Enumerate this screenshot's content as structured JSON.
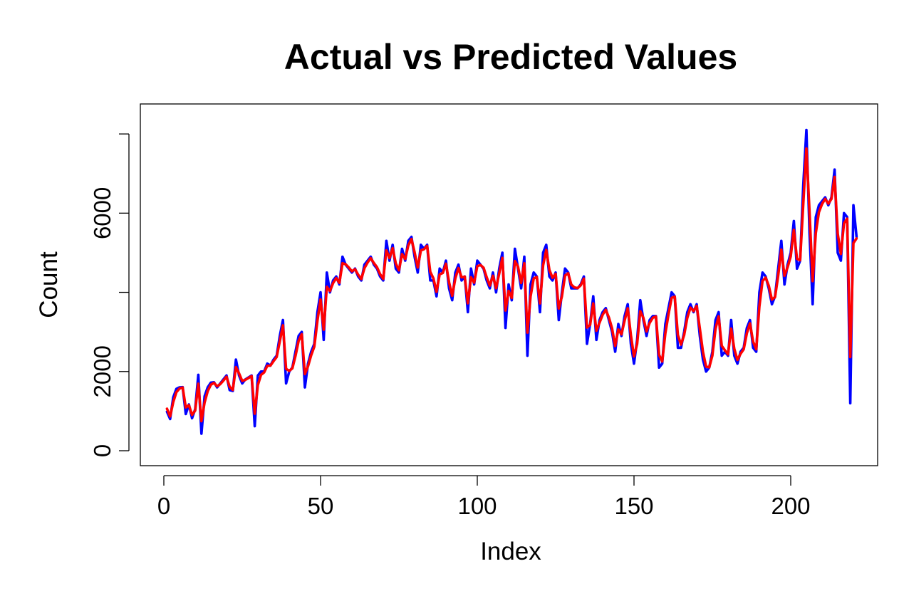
{
  "chart_data": {
    "type": "line",
    "title": "Actual vs Predicted Values",
    "xlabel": "Index",
    "ylabel": "Count",
    "xlim": [
      1,
      221
    ],
    "ylim": [
      0,
      8200
    ],
    "x_ticks": [
      0,
      50,
      100,
      150,
      200
    ],
    "y_ticks": [
      0,
      2000,
      6000
    ],
    "grid": false,
    "legend": "none",
    "series": [
      {
        "color": "#0000ff",
        "x_start": 1,
        "values": [
          985,
          801,
          1349,
          1562,
          1600,
          1606,
          927,
          1169,
          822,
          1051,
          1917,
          431,
          1376,
          1600,
          1720,
          1730,
          1600,
          1700,
          1800,
          1900,
          1530,
          1510,
          2300,
          1900,
          1700,
          1800,
          1850,
          1900,
          620,
          1900,
          2000,
          2000,
          2200,
          2150,
          2300,
          2400,
          2900,
          3300,
          1700,
          2000,
          2100,
          2500,
          2900,
          3000,
          1600,
          2200,
          2500,
          2700,
          3500,
          4000,
          2800,
          4500,
          4000,
          4300,
          4400,
          4200,
          4900,
          4700,
          4600,
          4500,
          4600,
          4400,
          4300,
          4700,
          4800,
          4900,
          4700,
          4600,
          4400,
          4300,
          5300,
          4800,
          5200,
          4600,
          4500,
          5100,
          4800,
          5300,
          5400,
          4900,
          4500,
          5200,
          5100,
          5200,
          4300,
          4300,
          3900,
          4600,
          4500,
          4800,
          4100,
          3800,
          4500,
          4700,
          4300,
          4400,
          3500,
          4600,
          4200,
          4800,
          4700,
          4600,
          4300,
          4100,
          4500,
          4000,
          4600,
          5000,
          3100,
          4200,
          3800,
          5100,
          4600,
          4100,
          4900,
          2400,
          4200,
          4500,
          4400,
          3500,
          5000,
          5200,
          4400,
          4300,
          4500,
          3300,
          4000,
          4600,
          4500,
          4100,
          4100,
          4100,
          4200,
          4400,
          2700,
          3200,
          3900,
          2800,
          3300,
          3500,
          3600,
          3300,
          3000,
          2500,
          3200,
          2900,
          3400,
          3700,
          2700,
          2200,
          2800,
          3800,
          3300,
          2900,
          3300,
          3400,
          3400,
          2100,
          2200,
          3200,
          3600,
          4000,
          3900,
          2600,
          2600,
          3000,
          3500,
          3700,
          3500,
          3700,
          2900,
          2300,
          2000,
          2100,
          2500,
          3300,
          3500,
          2400,
          2500,
          2400,
          3300,
          2400,
          2200,
          2500,
          2600,
          3100,
          3300,
          2600,
          2500,
          4000,
          4500,
          4400,
          4100,
          3700,
          3900,
          4600,
          5300,
          4200,
          4700,
          5000,
          5800,
          4600,
          4800,
          6700,
          8100,
          5500,
          3700,
          5900,
          6200,
          6300,
          6400,
          6200,
          6400,
          7100,
          5000,
          4800,
          6000,
          5900,
          1200,
          6200,
          5400
        ],
        "name": "",
        "points": [
          [
            1,
            985
          ],
          [
            2,
            801
          ],
          [
            3,
            1349
          ],
          [
            4,
            1562
          ],
          [
            5,
            1600
          ],
          [
            6,
            1606
          ],
          [
            7,
            927
          ],
          [
            8,
            1169
          ],
          [
            9,
            822
          ],
          [
            10,
            1051
          ],
          [
            11,
            1917
          ],
          [
            12,
            431
          ],
          [
            13,
            1376
          ],
          [
            14,
            1600
          ],
          [
            15,
            1720
          ],
          [
            16,
            1730
          ],
          [
            17,
            1600
          ],
          [
            18,
            1700
          ],
          [
            19,
            1800
          ],
          [
            20,
            1900
          ],
          [
            21,
            1530
          ],
          [
            22,
            1510
          ],
          [
            23,
            2300
          ],
          [
            24,
            1900
          ],
          [
            25,
            1700
          ],
          [
            26,
            1800
          ],
          [
            27,
            1850
          ],
          [
            28,
            1900
          ],
          [
            29,
            620
          ],
          [
            30,
            1900
          ]
        ]
      },
      {
        "color": "#ff0000",
        "name": "",
        "x_start": 1
      }
    ]
  }
}
